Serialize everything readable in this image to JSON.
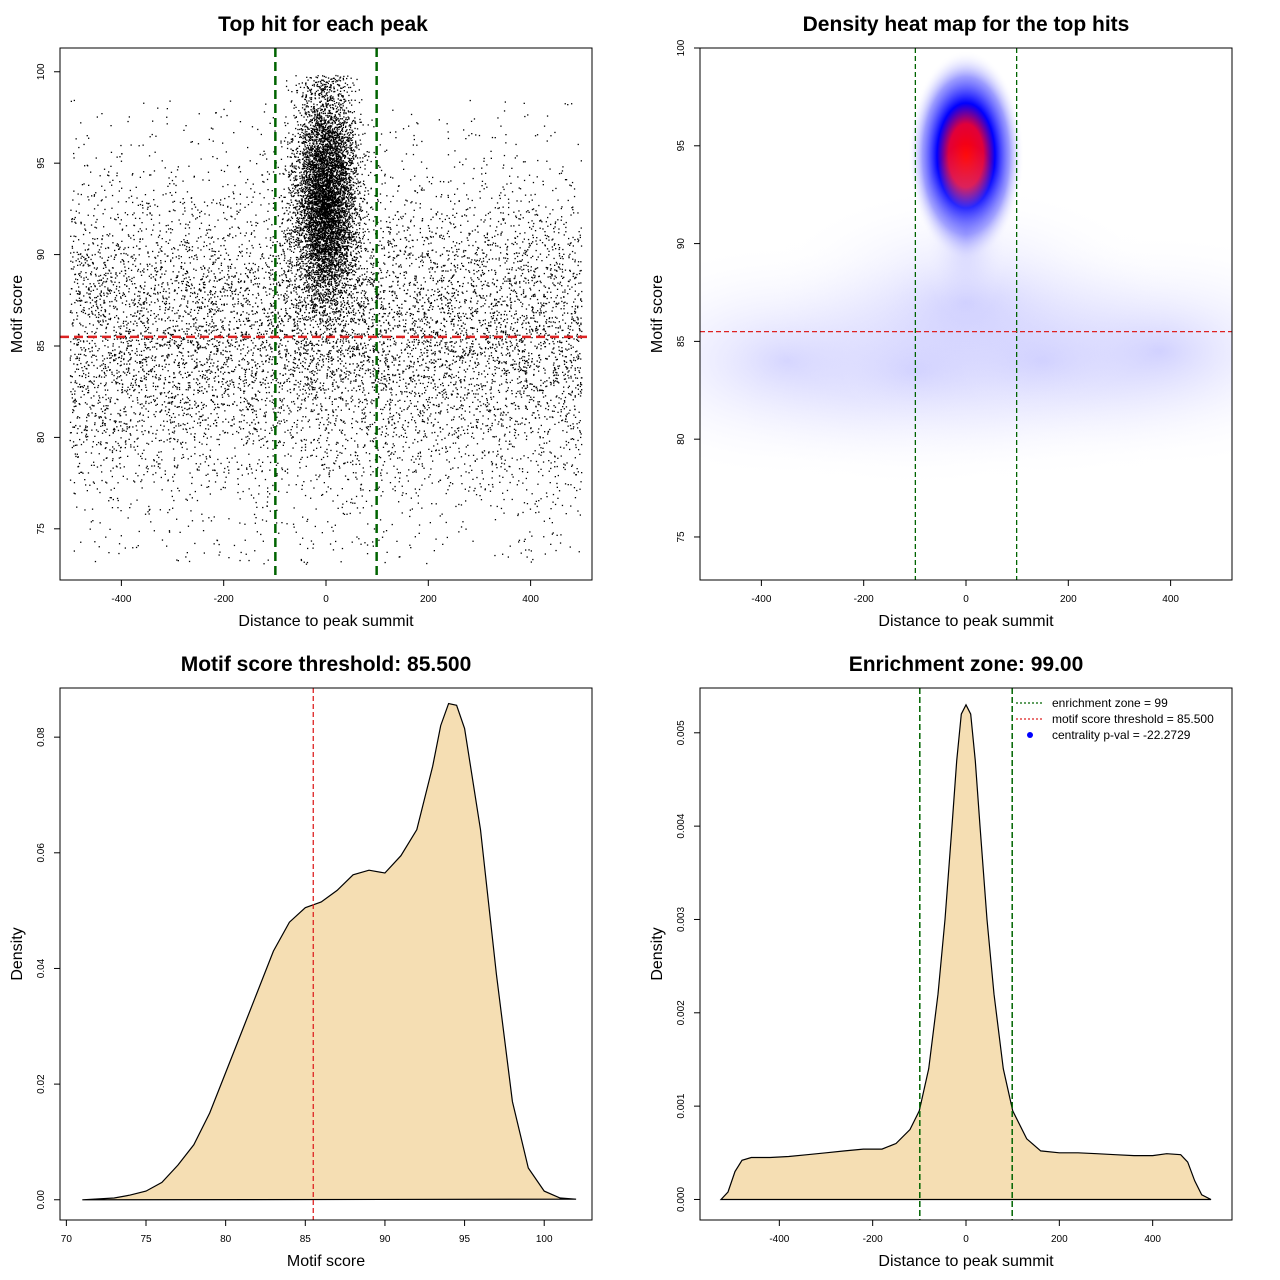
{
  "chart_data": [
    {
      "id": "scatter",
      "type": "scatter",
      "title": "Top hit for each peak",
      "xlabel": "Distance to peak summit",
      "ylabel": "Motif score",
      "xlim": [
        -520,
        520
      ],
      "ylim": [
        72.2,
        101.3
      ],
      "xticks": [
        "-400",
        "-200",
        "0",
        "200",
        "400"
      ],
      "xtick_values": [
        -400,
        -200,
        0,
        200,
        400
      ],
      "yticks": [
        "75",
        "80",
        "85",
        "90",
        "95",
        "100"
      ],
      "ytick_values": [
        75,
        80,
        85,
        90,
        95,
        100
      ],
      "x_range": [
        -500,
        500
      ],
      "background_points": 9000,
      "central_points": 6500,
      "central_mean": [
        0,
        93
      ],
      "central_sd": [
        30,
        3
      ],
      "threshold_line": 85.5,
      "threshold_color": "#dd2222",
      "zone_lines": [
        -99,
        99
      ],
      "zone_color": "#006400"
    },
    {
      "id": "heatmap",
      "type": "heatmap",
      "title": "Density heat map for the top hits",
      "xlabel": "Distance to peak summit",
      "ylabel": "Motif score",
      "xlim": [
        -520,
        520
      ],
      "ylim": [
        72.8,
        100
      ],
      "xticks": [
        "-400",
        "-200",
        "0",
        "200",
        "400"
      ],
      "xtick_values": [
        -400,
        -200,
        0,
        200,
        400
      ],
      "yticks": [
        "75",
        "80",
        "85",
        "90",
        "95",
        "100"
      ],
      "ytick_values": [
        75,
        80,
        85,
        90,
        95,
        100
      ],
      "peak_center": [
        0,
        94.5
      ],
      "color_scale": [
        "#ffffff",
        "#0000ff",
        "#ff0000"
      ],
      "threshold_line": 85.5,
      "threshold_color": "#dd2222",
      "zone_lines": [
        -99,
        99
      ],
      "zone_color": "#006400"
    },
    {
      "id": "density_score",
      "type": "area",
      "title": "Motif score threshold: 85.500",
      "xlabel": "Motif score",
      "ylabel": "Density",
      "xlim": [
        69.6,
        103.0
      ],
      "ylim": [
        -0.0035,
        0.0885
      ],
      "xticks": [
        "70",
        "75",
        "80",
        "85",
        "90",
        "95",
        "100"
      ],
      "xtick_values": [
        70,
        75,
        80,
        85,
        90,
        95,
        100
      ],
      "yticks": [
        "0.00",
        "0.02",
        "0.04",
        "0.06",
        "0.08"
      ],
      "ytick_values": [
        0,
        0.02,
        0.04,
        0.06,
        0.08
      ],
      "fill_color": "#f5deb3",
      "x": [
        71,
        73,
        74,
        75,
        76,
        77,
        78,
        79,
        80,
        81,
        82,
        83,
        84,
        85,
        85.5,
        86,
        87,
        88,
        89,
        90,
        91,
        92,
        93,
        93.5,
        94,
        94.5,
        95,
        96,
        97,
        98,
        99,
        100,
        101,
        102
      ],
      "y": [
        0,
        0.0003,
        0.0008,
        0.0015,
        0.003,
        0.006,
        0.0095,
        0.015,
        0.022,
        0.029,
        0.036,
        0.043,
        0.048,
        0.0505,
        0.051,
        0.0515,
        0.0535,
        0.0562,
        0.057,
        0.0565,
        0.0595,
        0.064,
        0.075,
        0.082,
        0.0858,
        0.0855,
        0.0815,
        0.064,
        0.039,
        0.017,
        0.0055,
        0.0015,
        0.0003,
        0.0001
      ],
      "threshold_line": 85.5,
      "threshold_color": "#dd2222"
    },
    {
      "id": "density_distance",
      "type": "area",
      "title": "Enrichment zone: 99.00",
      "xlabel": "Distance to peak summit",
      "ylabel": "Density",
      "xlim": [
        -570,
        570
      ],
      "ylim": [
        -0.00022,
        0.00548
      ],
      "xticks": [
        "-400",
        "-200",
        "0",
        "200",
        "400"
      ],
      "xtick_values": [
        -400,
        -200,
        0,
        200,
        400
      ],
      "yticks": [
        "0.000",
        "0.001",
        "0.002",
        "0.003",
        "0.004",
        "0.005"
      ],
      "ytick_values": [
        0,
        0.001,
        0.002,
        0.003,
        0.004,
        0.005
      ],
      "fill_color": "#f5deb3",
      "x": [
        -525,
        -510,
        -495,
        -480,
        -460,
        -420,
        -380,
        -340,
        -300,
        -260,
        -220,
        -180,
        -150,
        -120,
        -100,
        -80,
        -60,
        -45,
        -30,
        -20,
        -10,
        0,
        10,
        20,
        30,
        45,
        60,
        80,
        100,
        130,
        160,
        200,
        240,
        280,
        320,
        360,
        400,
        430,
        460,
        475,
        490,
        505,
        525
      ],
      "y": [
        0,
        8e-05,
        0.0003,
        0.00042,
        0.00045,
        0.00045,
        0.00046,
        0.00048,
        0.0005,
        0.00052,
        0.00054,
        0.00054,
        0.0006,
        0.00075,
        0.00095,
        0.0014,
        0.0022,
        0.003,
        0.004,
        0.0047,
        0.0052,
        0.0053,
        0.0052,
        0.0047,
        0.004,
        0.003,
        0.0022,
        0.0014,
        0.00095,
        0.00065,
        0.00052,
        0.0005,
        0.0005,
        0.00049,
        0.00048,
        0.00047,
        0.00047,
        0.00049,
        0.00048,
        0.0004,
        0.0002,
        5e-05,
        0
      ],
      "zone_lines": [
        -99,
        99
      ],
      "zone_color": "#006400",
      "legend": [
        {
          "label": "enrichment zone = 99",
          "color": "#006400",
          "kind": "dotted-line"
        },
        {
          "label": "motif score threshold = 85.500",
          "color": "#dd2222",
          "kind": "dotted-line"
        },
        {
          "label": "centrality p-val = -22.2729",
          "color": "#0000ff",
          "kind": "point"
        }
      ],
      "legend_position": "top-right"
    }
  ]
}
